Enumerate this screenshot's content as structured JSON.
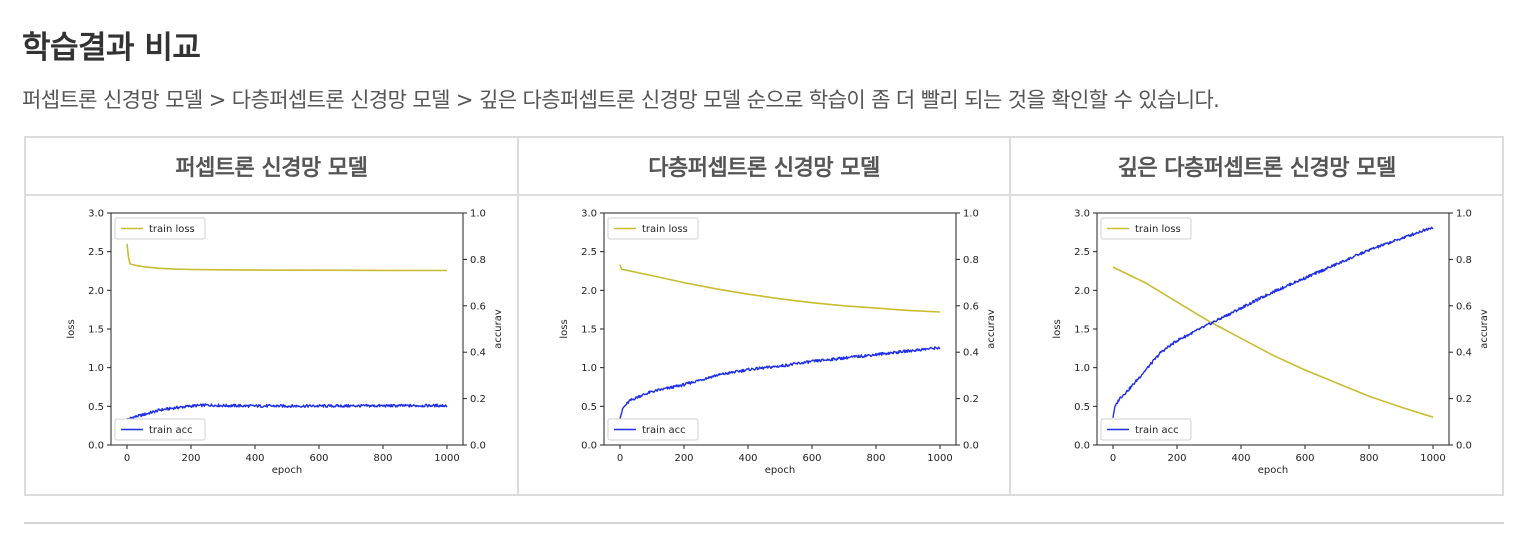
{
  "section": {
    "title": "학습결과 비교",
    "description": "퍼셉트론 신경망 모델 > 다층퍼셉트론 신경망 모델 > 깊은 다층퍼셉트론 신경망 모델 순으로 학습이 좀 더 빨리 되는 것을 확인할 수 있습니다."
  },
  "colors": {
    "loss": "#c8bc30",
    "acc": "#1f2fe6"
  },
  "chart_data": [
    {
      "type": "line",
      "title": "퍼셉트론 신경망 모델",
      "xlabel": "epoch",
      "ylabel": "loss",
      "y2label": "accuray",
      "xlim": [
        0,
        1000
      ],
      "ylim": [
        0,
        3.0
      ],
      "y2lim": [
        0,
        1.0
      ],
      "xticks": [
        "0",
        "200",
        "400",
        "600",
        "800",
        "1000"
      ],
      "yticks": [
        "0.0",
        "0.5",
        "1.0",
        "1.5",
        "2.0",
        "2.5",
        "3.0"
      ],
      "y2ticks": [
        "0.0",
        "0.2",
        "0.4",
        "0.6",
        "0.8",
        "1.0"
      ],
      "legend_loss": "train loss",
      "legend_acc": "train acc",
      "loss_legend_position": "top-left",
      "acc_legend_position": "bottom-left",
      "series": [
        {
          "name": "train loss",
          "axis": "left",
          "x": [
            0,
            5,
            10,
            30,
            60,
            100,
            150,
            200,
            300,
            400,
            600,
            800,
            1000
          ],
          "y": [
            2.6,
            2.42,
            2.34,
            2.32,
            2.3,
            2.285,
            2.275,
            2.27,
            2.265,
            2.262,
            2.26,
            2.258,
            2.257
          ]
        },
        {
          "name": "train acc",
          "axis": "right",
          "x": [
            0,
            20,
            50,
            100,
            150,
            200,
            250,
            300,
            400,
            600,
            800,
            1000
          ],
          "y": [
            0.11,
            0.12,
            0.13,
            0.15,
            0.16,
            0.168,
            0.172,
            0.17,
            0.168,
            0.168,
            0.169,
            0.17
          ]
        }
      ]
    },
    {
      "type": "line",
      "title": "다층퍼셉트론 신경망 모델",
      "xlabel": "epoch",
      "ylabel": "loss",
      "y2label": "accuray",
      "xlim": [
        0,
        1000
      ],
      "ylim": [
        0,
        3.0
      ],
      "y2lim": [
        0,
        1.0
      ],
      "xticks": [
        "0",
        "200",
        "400",
        "600",
        "800",
        "1000"
      ],
      "yticks": [
        "0.0",
        "0.5",
        "1.0",
        "1.5",
        "2.0",
        "2.5",
        "3.0"
      ],
      "y2ticks": [
        "0.0",
        "0.2",
        "0.4",
        "0.6",
        "0.8",
        "1.0"
      ],
      "legend_loss": "train loss",
      "legend_acc": "train acc",
      "loss_legend_position": "top-left",
      "acc_legend_position": "bottom-left",
      "series": [
        {
          "name": "train loss",
          "axis": "left",
          "x": [
            0,
            5,
            20,
            100,
            200,
            300,
            400,
            500,
            600,
            700,
            800,
            900,
            1000
          ],
          "y": [
            2.33,
            2.27,
            2.26,
            2.19,
            2.1,
            2.02,
            1.95,
            1.89,
            1.84,
            1.8,
            1.77,
            1.74,
            1.72
          ]
        },
        {
          "name": "train acc",
          "axis": "right",
          "x": [
            0,
            10,
            30,
            60,
            100,
            150,
            200,
            300,
            400,
            500,
            600,
            700,
            800,
            900,
            1000
          ],
          "y": [
            0.12,
            0.16,
            0.19,
            0.21,
            0.23,
            0.245,
            0.26,
            0.3,
            0.325,
            0.34,
            0.36,
            0.375,
            0.39,
            0.405,
            0.42
          ]
        }
      ]
    },
    {
      "type": "line",
      "title": "깊은 다층퍼셉트론 신경망 모델",
      "xlabel": "epoch",
      "ylabel": "loss",
      "y2label": "accuray",
      "xlim": [
        0,
        1000
      ],
      "ylim": [
        0,
        3.0
      ],
      "y2lim": [
        0,
        1.0
      ],
      "xticks": [
        "0",
        "200",
        "400",
        "600",
        "800",
        "1000"
      ],
      "yticks": [
        "0.0",
        "0.5",
        "1.0",
        "1.5",
        "2.0",
        "2.5",
        "3.0"
      ],
      "y2ticks": [
        "0.0",
        "0.2",
        "0.4",
        "0.6",
        "0.8",
        "1.0"
      ],
      "legend_loss": "train loss",
      "legend_acc": "train acc",
      "loss_legend_position": "top-left",
      "acc_legend_position": "bottom-left",
      "series": [
        {
          "name": "train loss",
          "axis": "left",
          "x": [
            0,
            50,
            100,
            200,
            300,
            400,
            500,
            600,
            700,
            800,
            900,
            1000
          ],
          "y": [
            2.3,
            2.2,
            2.1,
            1.85,
            1.6,
            1.38,
            1.16,
            0.97,
            0.8,
            0.63,
            0.49,
            0.36
          ]
        },
        {
          "name": "train acc",
          "axis": "right",
          "x": [
            0,
            5,
            20,
            50,
            100,
            150,
            200,
            300,
            400,
            500,
            600,
            700,
            800,
            900,
            1000
          ],
          "y": [
            0.12,
            0.16,
            0.2,
            0.24,
            0.32,
            0.4,
            0.45,
            0.52,
            0.59,
            0.66,
            0.72,
            0.78,
            0.84,
            0.89,
            0.94
          ]
        }
      ]
    }
  ]
}
